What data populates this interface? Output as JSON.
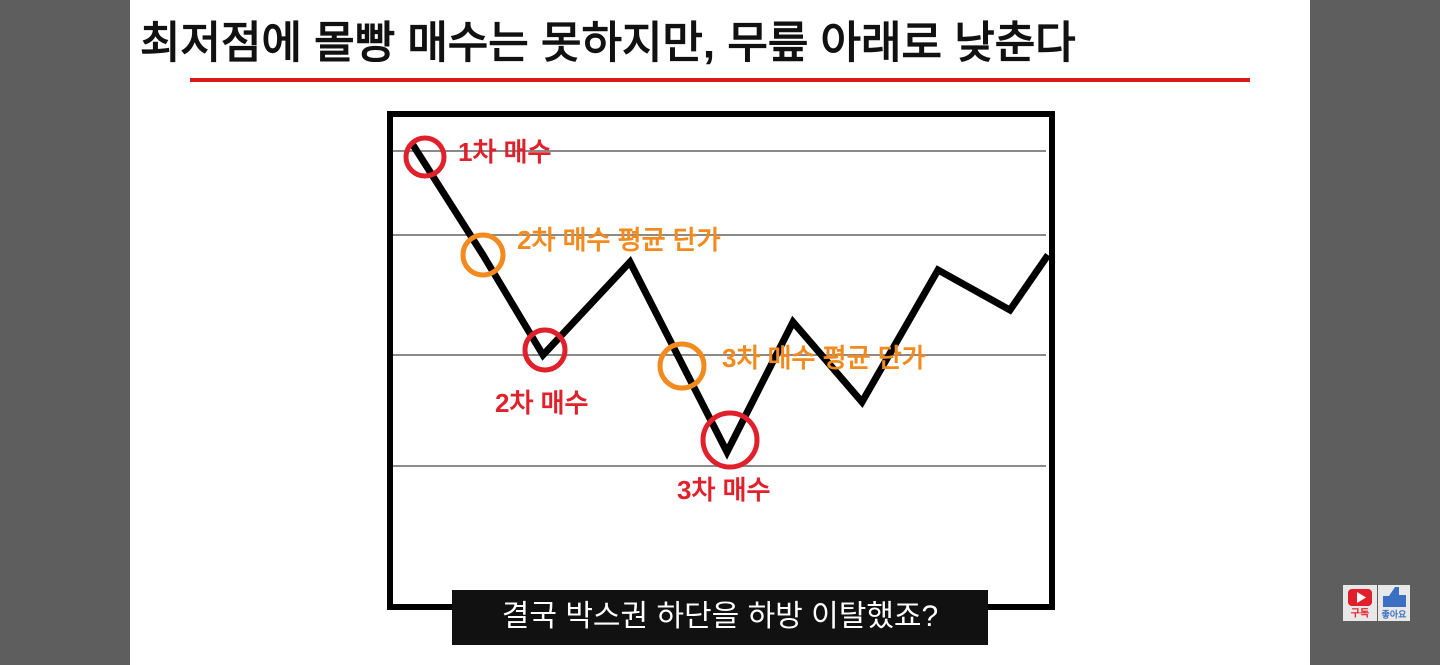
{
  "header": {
    "title": "최저점에 몰빵 매수는 못하지만, 무릎 아래로 낮춘다"
  },
  "diagram": {
    "labels": [
      "1차 매수",
      "2차 매수 평균 단가",
      "2차 매수",
      "3차 매수 평균 단가",
      "3차 매수"
    ]
  },
  "caption": "결국 박스권 하단을 하방 이탈했죠?",
  "buttons": {
    "subscribe": "구독",
    "like": "좋아요"
  }
}
